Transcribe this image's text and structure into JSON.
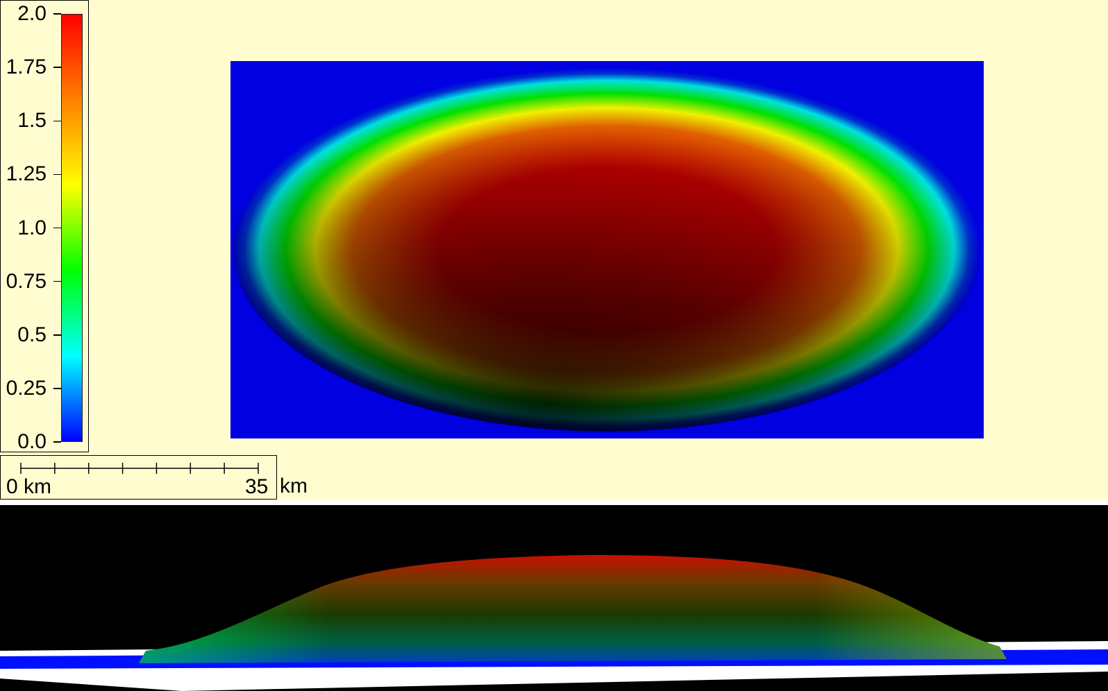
{
  "chart_data": {
    "type": "heatmap",
    "title": "",
    "colorbar": {
      "min": 0.0,
      "max": 2.0,
      "ticks": [
        "0.0",
        "0.25",
        "0.5",
        "0.75",
        "1.0",
        "1.25",
        "1.5",
        "1.75",
        "2.0"
      ],
      "tick_values": [
        0,
        0.25,
        0.5,
        0.75,
        1.0,
        1.25,
        1.5,
        1.75,
        2.0
      ],
      "colormap": [
        "#0000ff",
        "#00ffff",
        "#00ff00",
        "#ffff00",
        "#ff8000",
        "#ff0000"
      ]
    },
    "field": {
      "shape": "elliptical dome",
      "max_value": 2.0,
      "min_value": 0.0,
      "background_color": "#0000e0"
    },
    "scale_bar": {
      "start_label": "0 km",
      "end_label": "35",
      "unit": "km",
      "length_km": 35
    },
    "perspective_view": {
      "background_color": "#000000",
      "base_color": "#0000ff"
    }
  }
}
